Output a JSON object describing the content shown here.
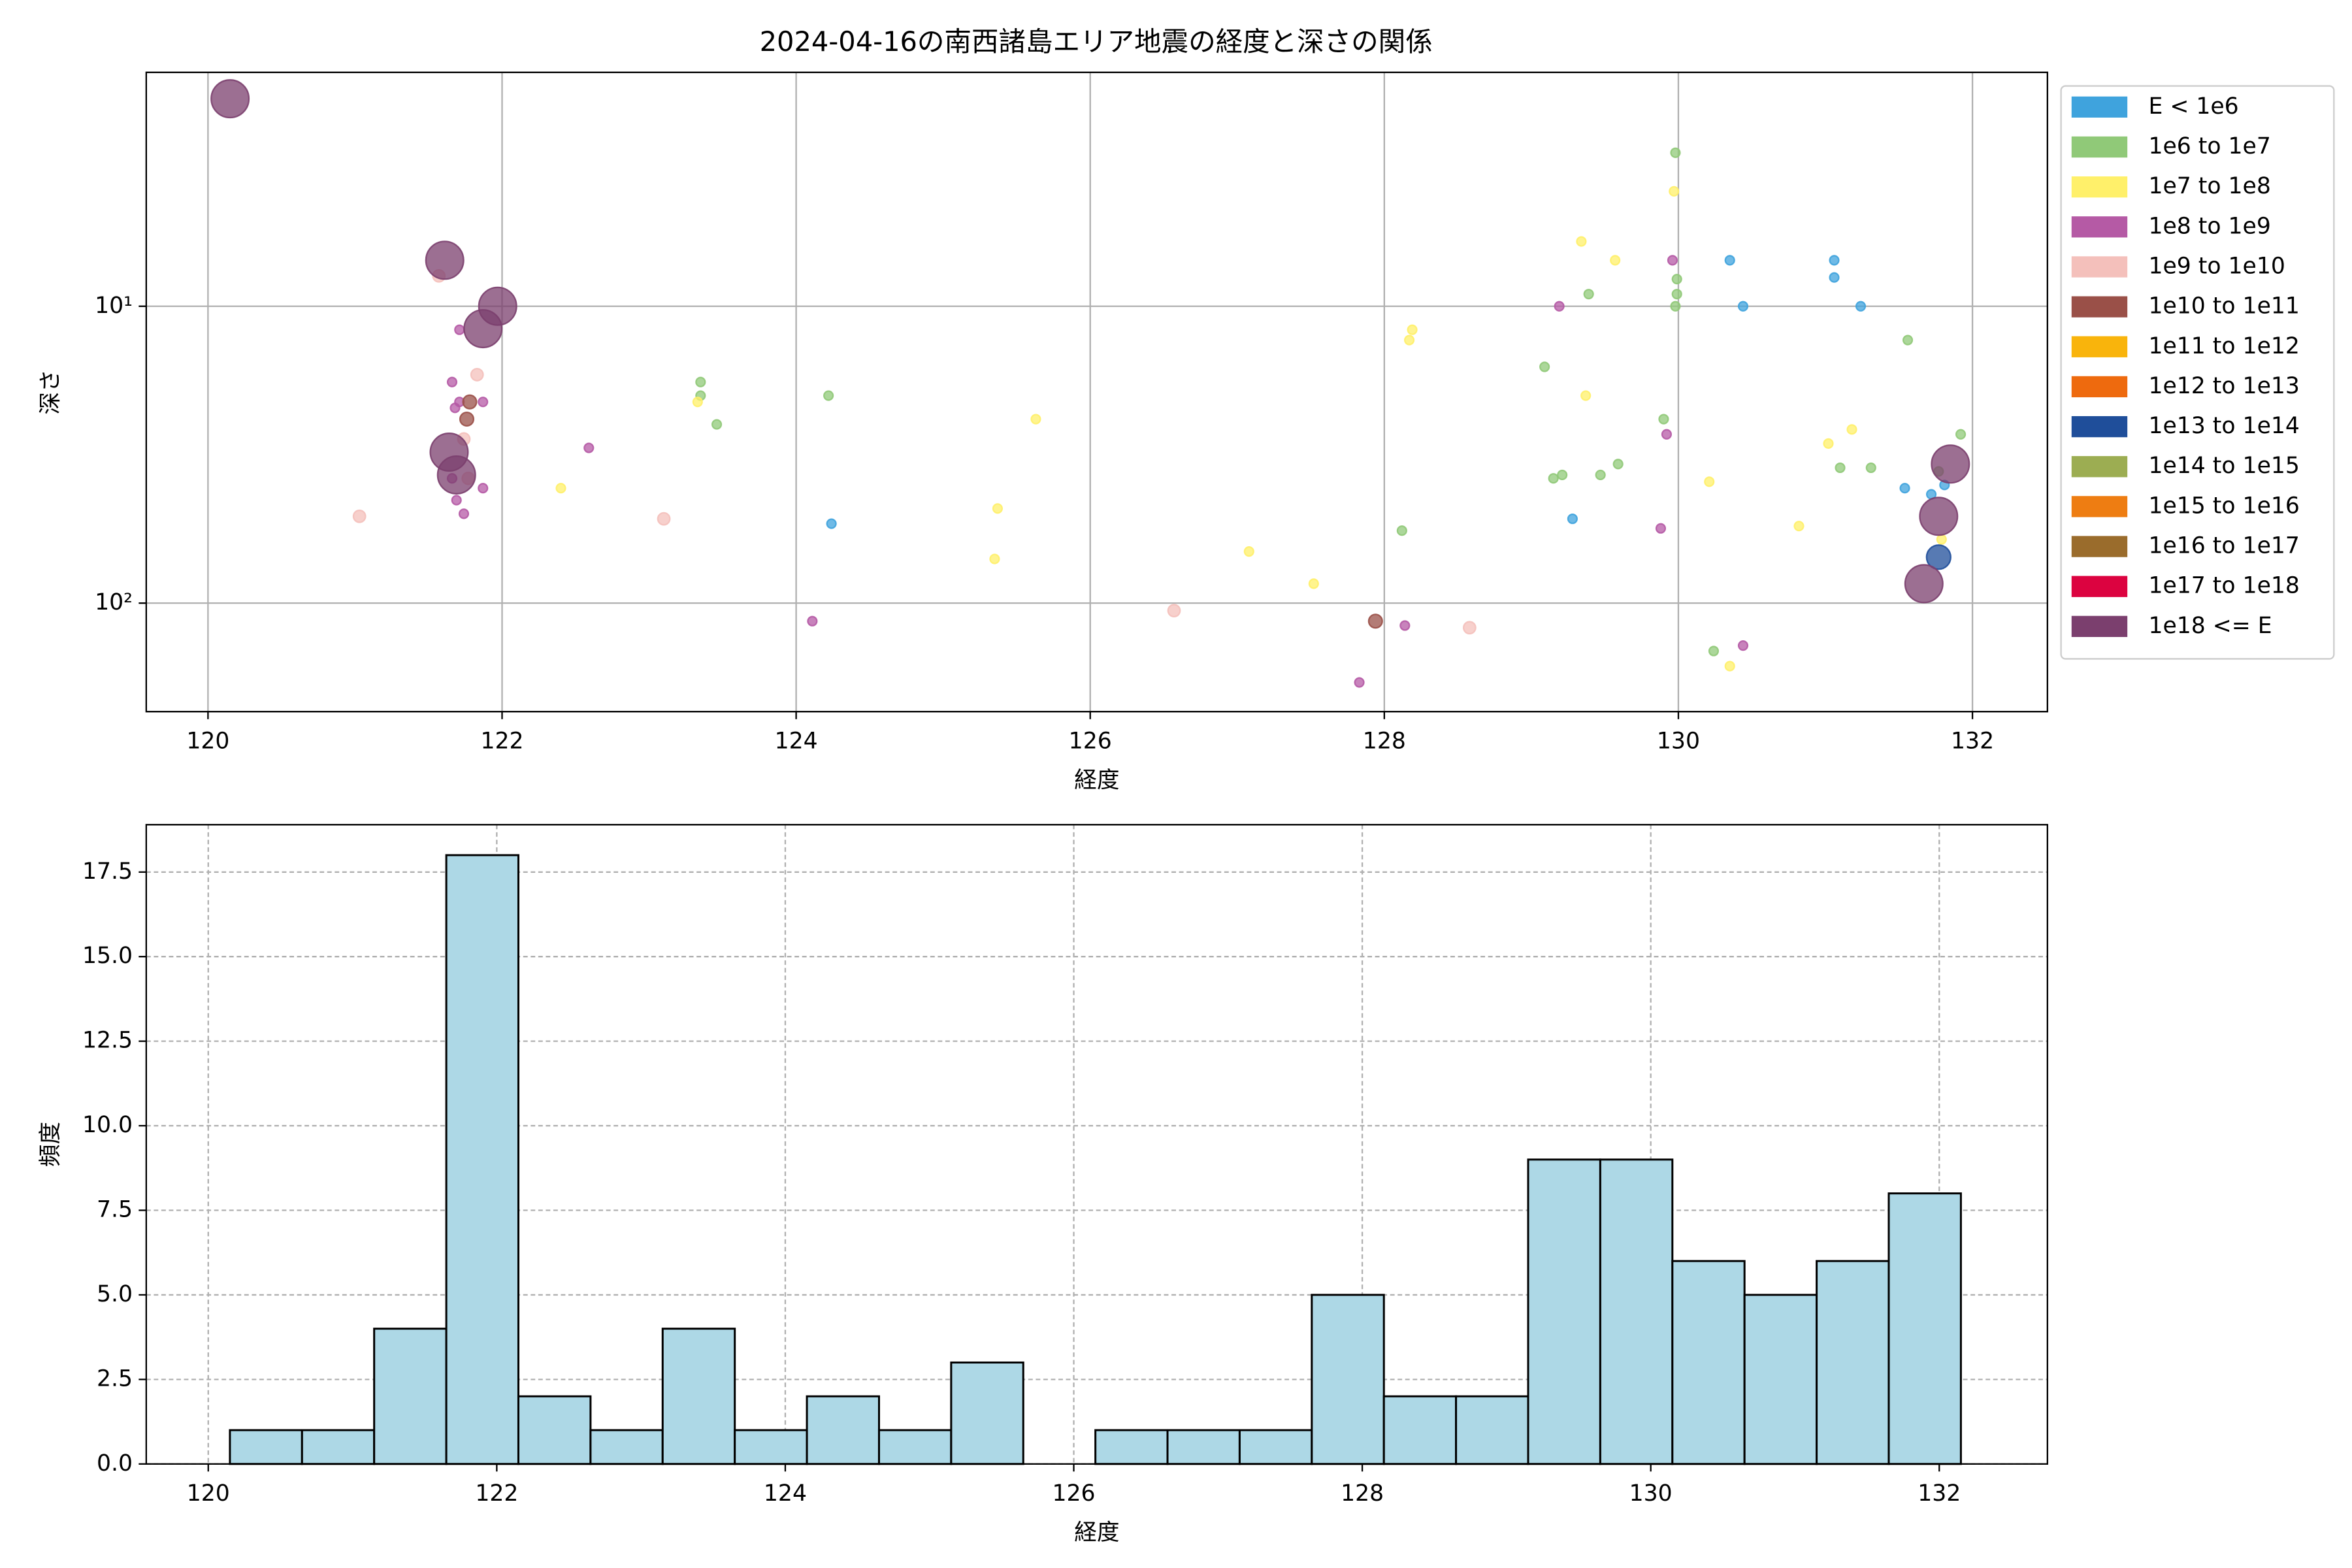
{
  "chart_data": [
    {
      "type": "scatter",
      "title": "2024-04-16の南西諸島エリア地震の経度と深さの関係",
      "xlabel": "経度",
      "ylabel": "深さ",
      "xlim": [
        119.58,
        132.51
      ],
      "xticks": [
        120,
        122,
        124,
        126,
        128,
        130,
        132
      ],
      "ylim": [
        1.63,
        232
      ],
      "yticks": [
        {
          "value": 10,
          "label": "10¹"
        },
        {
          "value": 100,
          "label": "10²"
        }
      ],
      "yscale": "log",
      "yinverted": true,
      "grid": true,
      "legend": "outside right",
      "series": [
        {
          "name": "E < 1e6",
          "color": "#3fa3dd",
          "x": [
            124.24,
            129.28,
            130.35,
            130.44,
            131.06,
            131.06,
            131.24,
            131.54,
            131.72,
            131.81
          ],
          "y": [
            54,
            52,
            7.0,
            10,
            7.0,
            8.0,
            10,
            41,
            43,
            40
          ]
        },
        {
          "name": "1e6 to 1e7",
          "color": "#90c978",
          "x": [
            123.35,
            123.35,
            123.46,
            124.22,
            128.12,
            129.09,
            129.15,
            129.21,
            129.39,
            129.47,
            129.59,
            129.9,
            129.98,
            129.99,
            129.99,
            129.98,
            130.24,
            131.1,
            131.31,
            131.56,
            131.77,
            131.92
          ],
          "y": [
            18,
            20,
            25,
            20,
            57,
            16,
            38,
            37,
            9.1,
            37,
            34,
            24,
            3.04,
            8.1,
            9.1,
            10,
            145,
            35,
            35,
            13,
            36,
            27
          ]
        },
        {
          "name": "1e7 to 1e8",
          "color": "#fff06a",
          "x": [
            122.4,
            123.33,
            125.37,
            125.35,
            125.63,
            127.08,
            127.52,
            128.17,
            128.19,
            129.34,
            129.57,
            129.37,
            129.97,
            130.21,
            130.35,
            130.82,
            131.02,
            131.18,
            131.79
          ],
          "y": [
            41,
            21,
            48,
            71,
            24,
            67,
            86,
            13,
            12,
            6.05,
            7,
            20,
            4.1,
            39,
            163,
            55,
            29,
            26,
            61
          ]
        },
        {
          "name": "1e8 to 1e9",
          "color": "#b55aa5",
          "x": [
            121.71,
            121.66,
            121.71,
            121.68,
            121.87,
            121.66,
            121.69,
            121.74,
            121.87,
            122.59,
            124.11,
            127.83,
            128.14,
            129.19,
            129.96,
            129.92,
            129.88,
            130.44
          ],
          "y": [
            12,
            18,
            21,
            22,
            21,
            38,
            45,
            50,
            41,
            30,
            115,
            185,
            119,
            10,
            7.0,
            27,
            56,
            139
          ]
        },
        {
          "name": "1e9 to 1e10",
          "color": "#f4c0bb",
          "x": [
            121.03,
            121.57,
            121.83,
            121.74,
            121.77,
            123.1,
            126.57,
            128.58
          ],
          "y": [
            51,
            7.9,
            17,
            28,
            38,
            52,
            106,
            121
          ]
        },
        {
          "name": "1e10 to 1e11",
          "color": "#9a5048",
          "x": [
            121.78,
            121.76,
            127.94
          ],
          "y": [
            21,
            24,
            115
          ]
        },
        {
          "name": "1e11 to 1e12",
          "color": "#f9b40c",
          "x": [],
          "y": []
        },
        {
          "name": "1e12 to 1e13",
          "color": "#ee6a0e",
          "x": [],
          "y": []
        },
        {
          "name": "1e13 to 1e14",
          "color": "#1f4e9a",
          "x": [
            131.77
          ],
          "y": [
            70
          ]
        },
        {
          "name": "1e14 to 1e15",
          "color": "#9cad52",
          "x": [],
          "y": []
        },
        {
          "name": "1e15 to 1e16",
          "color": "#ee7d12",
          "x": [],
          "y": []
        },
        {
          "name": "1e16 to 1e17",
          "color": "#9a6c2c",
          "x": [],
          "y": []
        },
        {
          "name": "1e17 to 1e18",
          "color": "#dc0340",
          "x": [],
          "y": []
        },
        {
          "name": "1e18 <= E",
          "color": "#7b3f6e",
          "x": [
            120.15,
            121.61,
            121.97,
            121.87,
            121.64,
            121.69,
            131.85,
            131.77,
            131.67
          ],
          "y": [
            2.0,
            7.0,
            10,
            11.9,
            31,
            37,
            34,
            51,
            86
          ]
        }
      ]
    },
    {
      "type": "histogram",
      "xlabel": "経度",
      "ylabel": "頻度",
      "color": "#add8e6",
      "edgecolor": "#000000",
      "bins": [
        120.15,
        120.65,
        121.15,
        121.65,
        122.15,
        122.65,
        123.15,
        123.65,
        124.15,
        124.65,
        125.15,
        125.65,
        126.15,
        126.65,
        127.15,
        127.65,
        128.15,
        128.65,
        129.15,
        129.65,
        130.15,
        130.65,
        131.15,
        131.65,
        132.15
      ],
      "values": [
        1,
        1,
        4,
        18,
        2,
        1,
        4,
        1,
        2,
        1,
        3,
        0,
        1,
        1,
        1,
        5,
        2,
        2,
        9,
        9,
        6,
        5,
        6,
        8
      ],
      "xlim": [
        119.57,
        132.75
      ],
      "xticks": [
        120,
        122,
        124,
        126,
        128,
        130,
        132
      ],
      "ylim": [
        0,
        18.9
      ],
      "yticks": [
        {
          "value": 0,
          "label": "0.0"
        },
        2.5,
        {
          "value": 5,
          "label": "5.0"
        },
        7.5,
        {
          "value": 10,
          "label": "10.0"
        },
        12.5,
        {
          "value": 15,
          "label": "15.0"
        },
        17.5
      ],
      "grid": true
    }
  ]
}
